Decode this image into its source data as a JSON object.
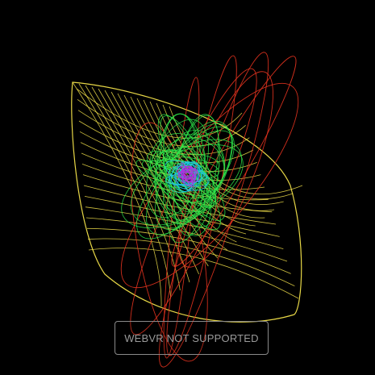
{
  "vr_button": {
    "label": "WEBVR NOT SUPPORTED"
  },
  "palette": {
    "background": "#000000",
    "outer_cage": "#f2e14a",
    "orbit_lines": "#e5331f",
    "inner_cluster": "#2ee84a",
    "core_cyan": "#18c8e8",
    "core_purple": "#b02ee0"
  }
}
